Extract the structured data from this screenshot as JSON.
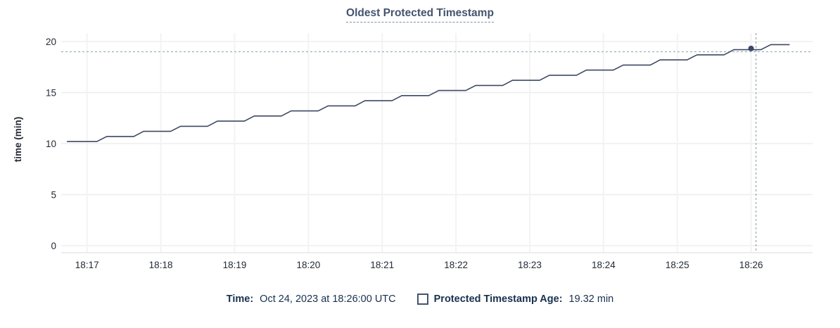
{
  "chart": {
    "title": "Oldest Protected Timestamp",
    "y_axis_label": "time (min)",
    "legend": {
      "time_label": "Time:",
      "time_value": "Oct 24, 2023 at 18:26:00 UTC",
      "series_label": "Protected Timestamp Age:",
      "series_value": "19.32 min"
    },
    "colors": {
      "line": "#3c4863",
      "dot": "#3c4863",
      "crosshair": "#9ab0ba",
      "grid_horizontal": "#ededed",
      "grid_vertical": "#f3f3f3",
      "axis_line": "#e7e7e7",
      "axis_text": "#242a35",
      "title": "#44546e",
      "legend_text": "#17304f"
    }
  },
  "chart_data": {
    "type": "line",
    "title": "Oldest Protected Timestamp",
    "xlabel": "",
    "ylabel": "time (min)",
    "ylim": [
      0,
      20
    ],
    "y_ticks": [
      0,
      5,
      10,
      15,
      20
    ],
    "x_ticks": [
      "18:17",
      "18:18",
      "18:19",
      "18:20",
      "18:21",
      "18:22",
      "18:23",
      "18:24",
      "18:25",
      "18:26"
    ],
    "x_range": [
      "18:16:39",
      "18:26:50"
    ],
    "grid": true,
    "legend_position": "bottom",
    "series": [
      {
        "name": "Protected Timestamp Age",
        "unit": "min",
        "points": [
          [
            "18:16:44",
            10.2
          ],
          [
            "18:17:08",
            10.2
          ],
          [
            "18:17:16",
            10.7
          ],
          [
            "18:17:38",
            10.7
          ],
          [
            "18:17:46",
            11.2
          ],
          [
            "18:18:08",
            11.2
          ],
          [
            "18:18:16",
            11.7
          ],
          [
            "18:18:38",
            11.7
          ],
          [
            "18:18:46",
            12.2
          ],
          [
            "18:19:08",
            12.2
          ],
          [
            "18:19:16",
            12.7
          ],
          [
            "18:19:38",
            12.7
          ],
          [
            "18:19:46",
            13.2
          ],
          [
            "18:20:08",
            13.2
          ],
          [
            "18:20:16",
            13.7
          ],
          [
            "18:20:38",
            13.7
          ],
          [
            "18:20:46",
            14.2
          ],
          [
            "18:21:08",
            14.2
          ],
          [
            "18:21:16",
            14.7
          ],
          [
            "18:21:38",
            14.7
          ],
          [
            "18:21:46",
            15.2
          ],
          [
            "18:22:08",
            15.2
          ],
          [
            "18:22:16",
            15.7
          ],
          [
            "18:22:38",
            15.7
          ],
          [
            "18:22:46",
            16.2
          ],
          [
            "18:23:08",
            16.2
          ],
          [
            "18:23:16",
            16.7
          ],
          [
            "18:23:38",
            16.7
          ],
          [
            "18:23:46",
            17.2
          ],
          [
            "18:24:08",
            17.2
          ],
          [
            "18:24:16",
            17.7
          ],
          [
            "18:24:38",
            17.7
          ],
          [
            "18:24:46",
            18.2
          ],
          [
            "18:25:08",
            18.2
          ],
          [
            "18:25:16",
            18.7
          ],
          [
            "18:25:38",
            18.7
          ],
          [
            "18:25:46",
            19.2
          ],
          [
            "18:26:08",
            19.2
          ],
          [
            "18:26:16",
            19.7
          ],
          [
            "18:26:31",
            19.7
          ]
        ]
      }
    ],
    "highlight_point": {
      "time": "18:26:00",
      "value": 19.32
    },
    "crosshair": {
      "time": "18:26:04",
      "value": 19.0
    }
  }
}
